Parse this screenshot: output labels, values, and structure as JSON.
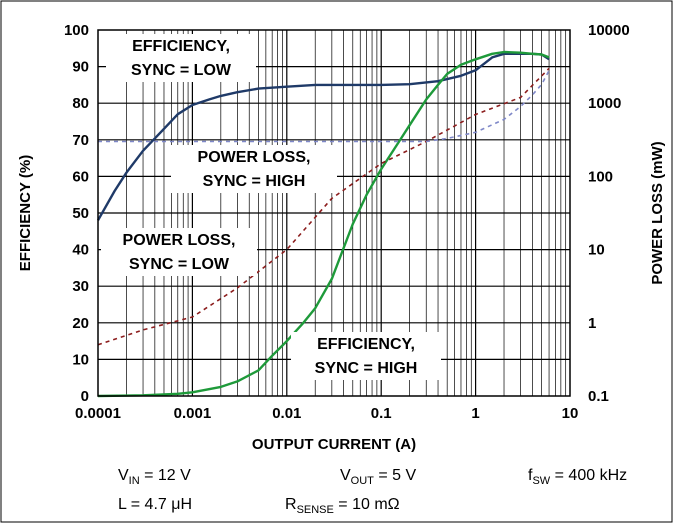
{
  "chart_data": {
    "type": "line",
    "xlabel": "OUTPUT CURRENT (A)",
    "ylabel": "EFFICIENCY (%)",
    "y2label": "POWER LOSS (mW)",
    "xscale": "log",
    "xlim": [
      0.0001,
      10
    ],
    "ylim": [
      0,
      100
    ],
    "y2scale": "log",
    "y2lim": [
      0.1,
      10000
    ],
    "grid": true,
    "x_ticks": [
      "0.0001",
      "0.001",
      "0.01",
      "0.1",
      "1",
      "10"
    ],
    "y_ticks": [
      "0",
      "10",
      "20",
      "30",
      "40",
      "50",
      "60",
      "70",
      "80",
      "90",
      "100"
    ],
    "y2_ticks": [
      "0.1",
      "1",
      "10",
      "100",
      "1000",
      "10000"
    ],
    "annotations": [
      {
        "lines": [
          "EFFICIENCY,",
          "SYNC = LOW"
        ]
      },
      {
        "lines": [
          "POWER LOSS,",
          "SYNC = HIGH"
        ]
      },
      {
        "lines": [
          "POWER LOSS,",
          "SYNC = LOW"
        ]
      },
      {
        "lines": [
          "EFFICIENCY,",
          "SYNC = HIGH"
        ]
      }
    ],
    "series": [
      {
        "axis": "left",
        "style": "solid",
        "color": "#1f3a68",
        "x": [
          0.0001,
          0.00015,
          0.0002,
          0.0003,
          0.0005,
          0.0007,
          0.001,
          0.0015,
          0.002,
          0.003,
          0.005,
          0.01,
          0.02,
          0.05,
          0.1,
          0.2,
          0.4,
          0.7,
          1,
          1.5,
          2,
          3,
          4,
          5,
          6
        ],
        "y": [
          48,
          56,
          61,
          67,
          73,
          77,
          79.5,
          81,
          82,
          83,
          84,
          84.5,
          85,
          85,
          85,
          85.2,
          86,
          87.5,
          89,
          92.5,
          93.5,
          93.5,
          93.5,
          93.3,
          92
        ]
      },
      {
        "axis": "left",
        "style": "solid",
        "color": "#1e9a3a",
        "x": [
          0.0001,
          0.0003,
          0.0007,
          0.001,
          0.002,
          0.003,
          0.005,
          0.007,
          0.01,
          0.015,
          0.02,
          0.03,
          0.05,
          0.07,
          0.1,
          0.15,
          0.2,
          0.3,
          0.4,
          0.5,
          0.7,
          1,
          1.5,
          2,
          3,
          4,
          5,
          6
        ],
        "y": [
          0,
          0.2,
          0.6,
          1,
          2.5,
          4,
          7,
          11,
          15,
          20,
          24,
          32,
          47,
          55,
          62,
          69,
          74,
          81,
          85,
          88,
          90.5,
          92,
          93.5,
          94,
          93.8,
          93.5,
          93.3,
          92.5
        ]
      },
      {
        "axis": "right",
        "style": "dashed",
        "color": "#8c1d1d",
        "x": [
          0.0001,
          0.0003,
          0.001,
          0.003,
          0.01,
          0.03,
          0.1,
          0.3,
          1,
          3,
          6
        ],
        "y": [
          0.5,
          0.8,
          1.2,
          3,
          10,
          50,
          150,
          300,
          700,
          1200,
          3000
        ]
      },
      {
        "axis": "right",
        "style": "dashed",
        "color": "#7f88c8",
        "x": [
          0.0001,
          0.001,
          0.01,
          0.1,
          0.3,
          0.5,
          1,
          2,
          3,
          4,
          5,
          6
        ],
        "y": [
          300,
          300,
          300,
          300,
          300,
          330,
          400,
          600,
          900,
          1300,
          1800,
          2800
        ]
      }
    ]
  },
  "conditions": {
    "vin": {
      "base": "V",
      "sub": "IN",
      "value": " = 12 V"
    },
    "vout": {
      "base": "V",
      "sub": "OUT",
      "value": " = 5 V"
    },
    "fsw": {
      "base": "f",
      "sub": "SW",
      "value": " = 400 kHz"
    },
    "l": {
      "base": "L",
      "sub": "",
      "value": " = 4.7 μH"
    },
    "rsense": {
      "base": "R",
      "sub": "SENSE",
      "value": " = 10 mΩ"
    }
  }
}
